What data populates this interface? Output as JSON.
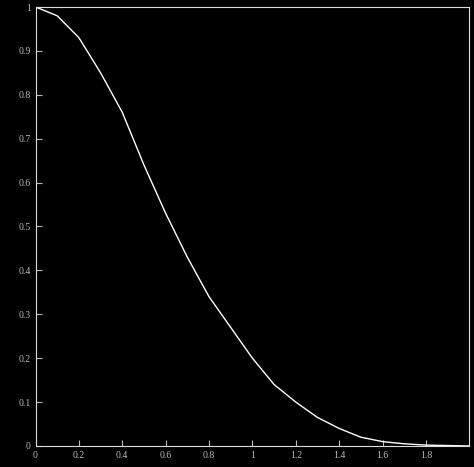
{
  "chart_data": {
    "type": "line",
    "color": "#ffffff",
    "line_style": "solid",
    "grid": false,
    "x": [
      0,
      0.1,
      0.2,
      0.3,
      0.4,
      0.5,
      0.6,
      0.7,
      0.8,
      0.9,
      1.0,
      1.1,
      1.2,
      1.3,
      1.4,
      1.5,
      1.6,
      1.7,
      1.8,
      1.9,
      2.0
    ],
    "values": [
      1.0,
      0.98,
      0.93,
      0.85,
      0.76,
      0.64,
      0.53,
      0.43,
      0.34,
      0.27,
      0.2,
      0.14,
      0.1,
      0.065,
      0.04,
      0.02,
      0.01,
      0.005,
      0.002,
      0.001,
      0.0
    ],
    "xlim": [
      0,
      2
    ],
    "ylim": [
      0,
      1
    ],
    "xticks": [
      0,
      0.2,
      0.4,
      0.6,
      0.8,
      1,
      1.2,
      1.4,
      1.6,
      1.8
    ],
    "yticks": [
      0,
      0.1,
      0.2,
      0.3,
      0.4,
      0.5,
      0.6,
      0.7,
      0.8,
      0.9,
      1
    ]
  }
}
